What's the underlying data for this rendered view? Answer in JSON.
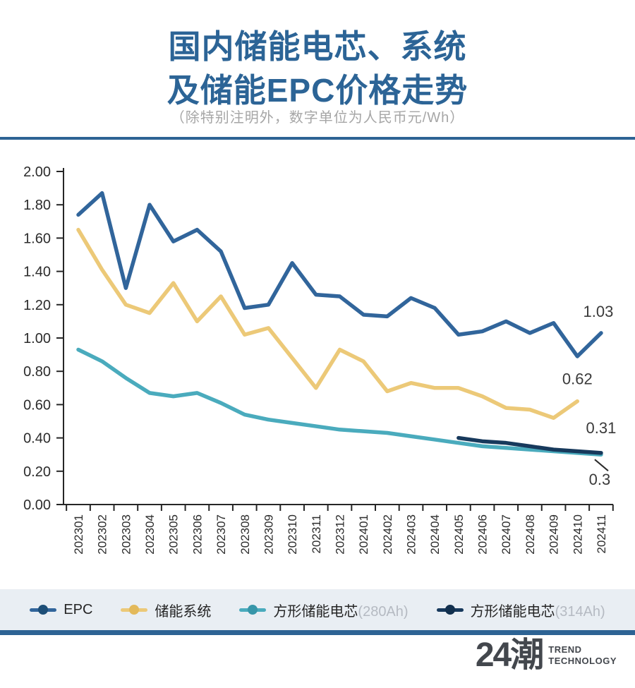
{
  "header": {
    "title_line1": "国内储能电芯、系统",
    "title_line2": "及储能EPC价格走势",
    "subtitle": "（除特别注明外，数字单位为人民币元/Wh）"
  },
  "chart_data": {
    "type": "line",
    "categories": [
      "202301",
      "202302",
      "202303",
      "202304",
      "202305",
      "202306",
      "202307",
      "202308",
      "202309",
      "202310",
      "202311",
      "202312",
      "202401",
      "202402",
      "202403",
      "202404",
      "202405",
      "202406",
      "202407",
      "202408",
      "202409",
      "202410",
      "202411"
    ],
    "ylim": [
      0,
      2.0
    ],
    "ytick_step": 0.2,
    "grid": false,
    "legend_position": "bottom",
    "series": [
      {
        "id": "epc",
        "name": "EPC",
        "suffix": "",
        "color": "#31659b",
        "dot_color": "#1d4e77",
        "start_index": 0,
        "values": [
          1.74,
          1.87,
          1.3,
          1.8,
          1.58,
          1.65,
          1.52,
          1.18,
          1.2,
          1.45,
          1.26,
          1.25,
          1.14,
          1.13,
          1.24,
          1.18,
          1.02,
          1.04,
          1.1,
          1.03,
          1.09,
          0.89,
          1.03
        ]
      },
      {
        "id": "storage-system",
        "name": "储能系统",
        "suffix": "",
        "color": "#ecc978",
        "dot_color": "#e3b95a",
        "start_index": 0,
        "values": [
          1.65,
          1.41,
          1.2,
          1.15,
          1.33,
          1.1,
          1.25,
          1.02,
          1.06,
          0.88,
          0.7,
          0.93,
          0.86,
          0.68,
          0.73,
          0.7,
          0.7,
          0.65,
          0.58,
          0.57,
          0.52,
          0.62
        ]
      },
      {
        "id": "cell-280ah",
        "name": "方形储能电芯",
        "suffix": "(280Ah)",
        "color": "#4aabbd",
        "dot_color": "#3796a9",
        "start_index": 0,
        "values": [
          0.93,
          0.86,
          0.76,
          0.67,
          0.65,
          0.67,
          0.61,
          0.54,
          0.51,
          0.49,
          0.47,
          0.45,
          0.44,
          0.43,
          0.41,
          0.39,
          0.37,
          0.35,
          0.34,
          0.33,
          0.32,
          0.31,
          0.3
        ]
      },
      {
        "id": "cell-314ah",
        "name": "方形储能电芯",
        "suffix": "(314Ah)",
        "color": "#17395c",
        "dot_color": "#12304e",
        "start_index": 16,
        "values": [
          0.4,
          0.38,
          0.37,
          0.35,
          0.33,
          0.32,
          0.31
        ]
      }
    ],
    "annotations": [
      {
        "text": "1.03",
        "series": "epc",
        "leader": false
      },
      {
        "text": "0.62",
        "series": "storage-system",
        "leader": false
      },
      {
        "text": "0.31",
        "series": "cell-314ah",
        "leader": false
      },
      {
        "text": "0.3",
        "series": "cell-280ah",
        "leader": true
      }
    ]
  },
  "footer": {
    "brand": "24潮",
    "tagline1": "TREND",
    "tagline2": "TECHNOLOGY"
  }
}
